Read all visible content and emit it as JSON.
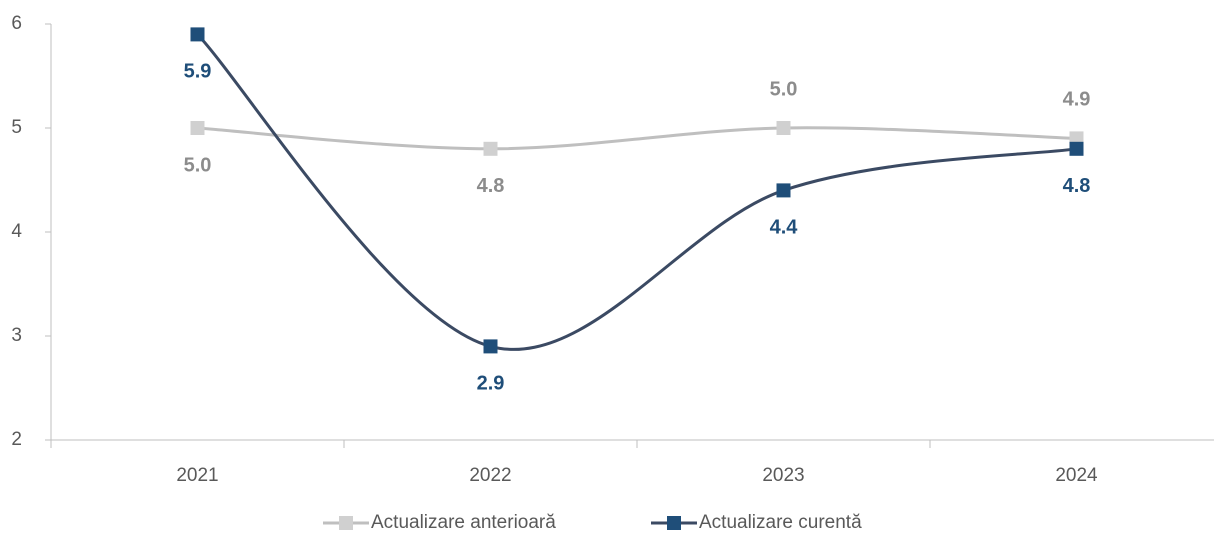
{
  "chart_data": {
    "type": "line",
    "categories": [
      "2021",
      "2022",
      "2023",
      "2024"
    ],
    "series": [
      {
        "name": "Actualizare anterioară",
        "color": "#bfbfbf",
        "label_color": "#8c8c8c",
        "values": [
          5.0,
          4.8,
          5.0,
          4.9
        ],
        "value_labels": [
          "5.0",
          "4.8",
          "5.0",
          "4.9"
        ]
      },
      {
        "name": "Actualizare curentă",
        "color": "#1f4e79",
        "label_color": "#1f4e79",
        "values": [
          5.9,
          2.9,
          4.4,
          4.8
        ],
        "value_labels": [
          "5.9",
          "2.9",
          "4.4",
          "4.8"
        ]
      }
    ],
    "ylim": [
      2,
      6
    ],
    "yticks": [
      2,
      3,
      4,
      5,
      6
    ],
    "grid": false,
    "smooth": true,
    "legend": "bottom"
  }
}
